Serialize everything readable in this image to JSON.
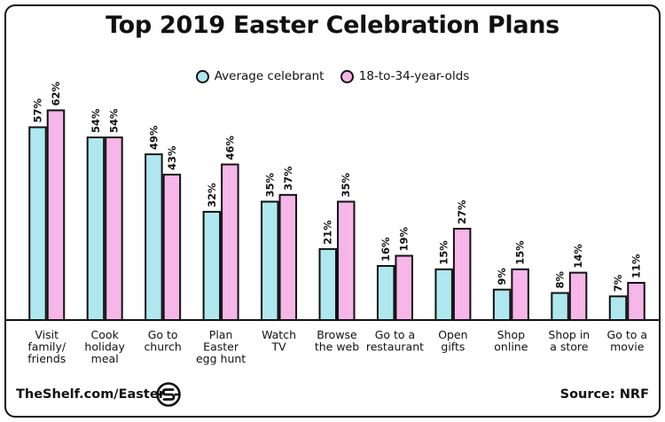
{
  "title": "Top 2019 Easter Celebration Plans",
  "footer": {
    "left": "TheShelf.com/Easter",
    "right": "Source: NRF"
  },
  "colors": {
    "series_1": "#aee8ee",
    "series_2": "#f6b6e8",
    "outline": "#111111"
  },
  "chart_data": {
    "type": "bar",
    "title": "Top 2019 Easter Celebration Plans",
    "xlabel": "",
    "ylabel": "",
    "ylim": [
      0,
      65
    ],
    "grid": false,
    "legend": "top-center",
    "value_suffix": "%",
    "categories": [
      [
        "Visit",
        "family/",
        "friends"
      ],
      [
        "Cook",
        "holiday",
        "meal"
      ],
      [
        "Go to",
        "church"
      ],
      [
        "Plan",
        "Easter",
        "egg hunt"
      ],
      [
        "Watch",
        "TV"
      ],
      [
        "Browse",
        "the web"
      ],
      [
        "Go to a",
        "restaurant"
      ],
      [
        "Open",
        "gifts"
      ],
      [
        "Shop",
        "online"
      ],
      [
        "Shop in",
        "a store"
      ],
      [
        "Go to a",
        "movie"
      ]
    ],
    "series": [
      {
        "name": "Average celebrant",
        "values": [
          57,
          54,
          49,
          32,
          35,
          21,
          16,
          15,
          9,
          8,
          7
        ]
      },
      {
        "name": "18-to-34-year-olds",
        "values": [
          62,
          54,
          43,
          46,
          37,
          35,
          19,
          27,
          15,
          14,
          11
        ]
      }
    ]
  }
}
